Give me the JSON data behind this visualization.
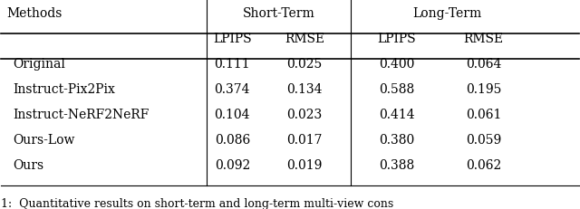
{
  "methods": [
    "Original",
    "Instruct-Pix2Pix",
    "Instruct-NeRF2NeRF",
    "Ours-Low",
    "Ours"
  ],
  "short_term_lpips": [
    0.111,
    0.374,
    0.104,
    0.086,
    0.092
  ],
  "short_term_rmse": [
    0.025,
    0.134,
    0.023,
    0.017,
    0.019
  ],
  "long_term_lpips": [
    0.4,
    0.588,
    0.414,
    0.38,
    0.388
  ],
  "long_term_rmse": [
    0.064,
    0.195,
    0.061,
    0.059,
    0.062
  ],
  "caption": "1:  Quantitative results on short-term and long-term multi-view cons",
  "bg_color": "#ffffff",
  "text_color": "#000000",
  "font_size": 10,
  "caption_font_size": 9
}
